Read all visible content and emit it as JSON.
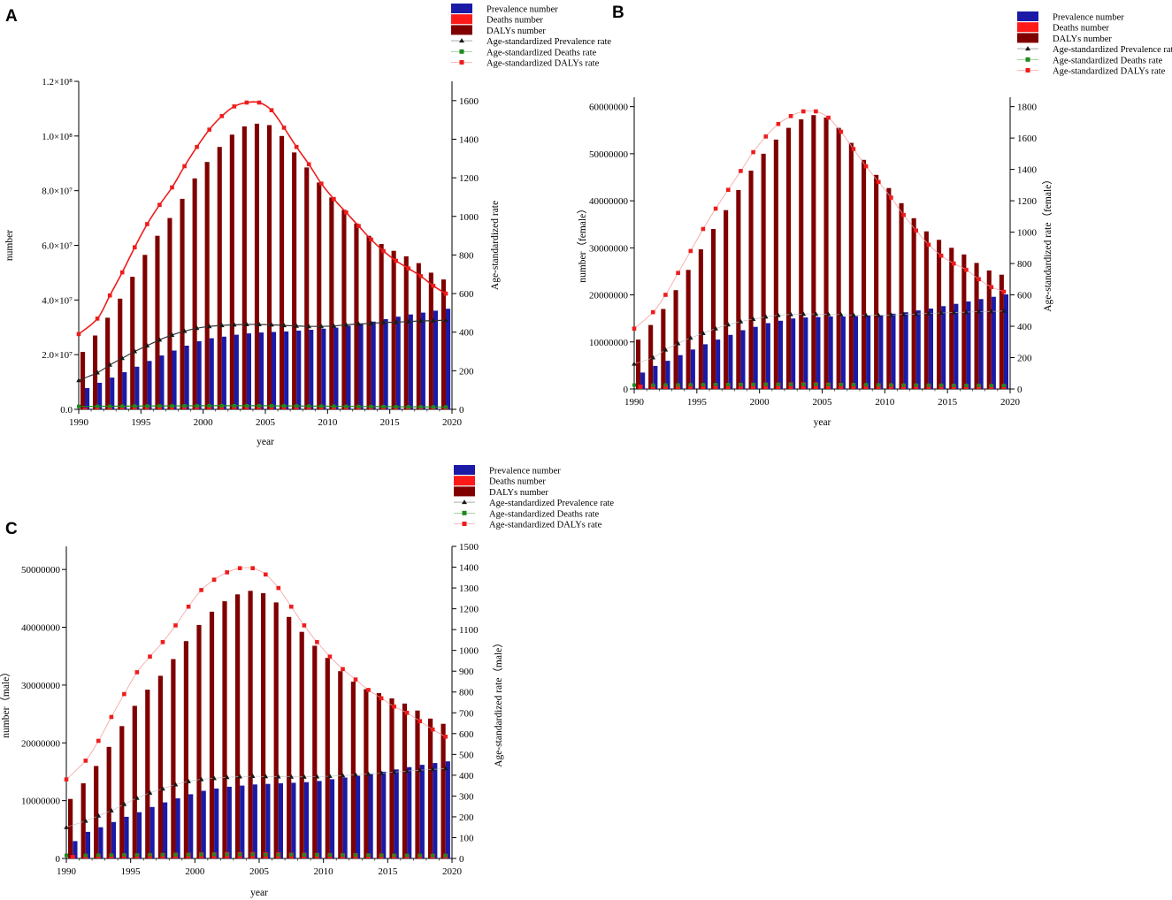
{
  "figure": {
    "legend_labels": [
      "Prevalence number",
      "Deaths number",
      "DALYs number",
      "Age-standardized Prevalence rate",
      "Age-standardized Deaths rate",
      "Age-standardized DALYs rate"
    ],
    "colors": {
      "prevalence_bar": "#1a1aa6",
      "deaths_bar": "#ff1a1a",
      "dalys_bar": "#800000",
      "prevalence_rate": "#1a1a1a",
      "deaths_rate": "#1e8a1e",
      "dalys_rate": "#ee1c1c",
      "prevalence_rate_line_a": "#333333",
      "dalys_rate_line_a": "#ee1c1c",
      "rate_line_light": "#f4a0a0"
    }
  },
  "chart_data": [
    {
      "panel": "A",
      "type": "bar",
      "style": "smooth",
      "x": [
        1990,
        1991,
        1992,
        1993,
        1994,
        1995,
        1996,
        1997,
        1998,
        1999,
        2000,
        2001,
        2002,
        2003,
        2004,
        2005,
        2006,
        2007,
        2008,
        2009,
        2010,
        2011,
        2012,
        2013,
        2014,
        2015,
        2016,
        2017,
        2018,
        2019
      ],
      "xlim": [
        1990,
        2020
      ],
      "xticks": [
        1990,
        1995,
        2000,
        2005,
        2010,
        2015,
        2020
      ],
      "xlabel": "year",
      "ylabel": "number",
      "ylim": [
        0,
        120000000
      ],
      "yticks": [
        0,
        20000000,
        40000000,
        60000000,
        80000000,
        100000000,
        120000000
      ],
      "yticklabels": [
        "0.0",
        "2.0×10⁷",
        "4.0×10⁷",
        "6.0×10⁷",
        "8.0×10⁷",
        "1.0×10⁸",
        "1.2×10⁸"
      ],
      "y2label": "Age-standardized rate",
      "y2lim": [
        0,
        1700
      ],
      "y2ticks": [
        0,
        200,
        400,
        600,
        800,
        1000,
        1200,
        1400,
        1600
      ],
      "series": [
        {
          "name": "Prevalence number",
          "kind": "bar",
          "values": [
            7800000,
            9700000,
            11600000,
            13600000,
            15600000,
            17700000,
            19700000,
            21500000,
            23300000,
            24900000,
            26000000,
            26600000,
            27300000,
            27800000,
            28100000,
            28300000,
            28500000,
            28800000,
            29100000,
            29500000,
            29900000,
            30600000,
            31300000,
            32100000,
            33000000,
            33900000,
            34700000,
            35400000,
            36100000,
            36800000
          ]
        },
        {
          "name": "Deaths number",
          "kind": "bar",
          "values": [
            600000,
            700000,
            800000,
            900000,
            1000000,
            1100000,
            1200000,
            1300000,
            1350000,
            1400000,
            1450000,
            1500000,
            1500000,
            1500000,
            1500000,
            1450000,
            1400000,
            1350000,
            1300000,
            1250000,
            1200000,
            1150000,
            1100000,
            1050000,
            1000000,
            1000000,
            1000000,
            1000000,
            1000000,
            1000000
          ]
        },
        {
          "name": "DALYs number",
          "kind": "bar",
          "values": [
            21000000,
            27000000,
            33500000,
            40500000,
            48500000,
            56500000,
            63500000,
            70000000,
            77000000,
            84500000,
            90500000,
            96000000,
            100500000,
            103500000,
            104500000,
            104000000,
            100000000,
            94000000,
            88500000,
            83000000,
            77500000,
            73000000,
            68000000,
            63500000,
            60500000,
            58000000,
            56000000,
            53500000,
            50000000,
            47500000
          ]
        },
        {
          "name": "Age-standardized Prevalence rate",
          "kind": "line",
          "values": [
            150,
            190,
            230,
            265,
            300,
            330,
            360,
            385,
            405,
            420,
            430,
            435,
            438,
            440,
            440,
            438,
            435,
            432,
            430,
            430,
            432,
            438,
            442,
            446,
            450,
            452,
            455,
            458,
            460,
            462
          ]
        },
        {
          "name": "Age-standardized Deaths rate",
          "kind": "line",
          "values": [
            15,
            15.5,
            16,
            16.5,
            17,
            17.5,
            18,
            18,
            18.5,
            18.5,
            19,
            19,
            19,
            19,
            19,
            18.5,
            18,
            17.5,
            17,
            16.5,
            16,
            15.5,
            15,
            14.5,
            14,
            13.5,
            13,
            13,
            12.5,
            12.5
          ]
        },
        {
          "name": "Age-standardized DALYs rate",
          "kind": "line",
          "values": [
            390,
            470,
            590,
            710,
            840,
            960,
            1060,
            1150,
            1260,
            1360,
            1450,
            1520,
            1570,
            1590,
            1590,
            1550,
            1460,
            1360,
            1270,
            1170,
            1090,
            1020,
            950,
            880,
            820,
            770,
            730,
            690,
            640,
            600
          ]
        }
      ]
    },
    {
      "panel": "B",
      "type": "bar",
      "style": "markers",
      "x": [
        1990,
        1991,
        1992,
        1993,
        1994,
        1995,
        1996,
        1997,
        1998,
        1999,
        2000,
        2001,
        2002,
        2003,
        2004,
        2005,
        2006,
        2007,
        2008,
        2009,
        2010,
        2011,
        2012,
        2013,
        2014,
        2015,
        2016,
        2017,
        2018,
        2019
      ],
      "xlim": [
        1990,
        2020
      ],
      "xticks": [
        1990,
        1995,
        2000,
        2005,
        2010,
        2015,
        2020
      ],
      "xlabel": "year",
      "ylabel": "number（female）",
      "ylim": [
        0,
        62000000
      ],
      "yticks": [
        0,
        10000000,
        20000000,
        30000000,
        40000000,
        50000000,
        60000000
      ],
      "yticklabels": [
        "0",
        "10000000",
        "20000000",
        "30000000",
        "40000000",
        "50000000",
        "60000000"
      ],
      "y2label": "Age-standardized rate（female）",
      "y2lim": [
        0,
        1860
      ],
      "y2ticks": [
        0,
        200,
        400,
        600,
        800,
        1000,
        1200,
        1400,
        1600,
        1800
      ],
      "series": [
        {
          "name": "Prevalence number",
          "kind": "bar",
          "values": [
            3500000,
            4900000,
            6000000,
            7200000,
            8400000,
            9500000,
            10500000,
            11500000,
            12500000,
            13200000,
            14000000,
            14500000,
            15000000,
            15200000,
            15300000,
            15400000,
            15400000,
            15500000,
            15600000,
            15700000,
            16000000,
            16300000,
            16700000,
            17100000,
            17600000,
            18100000,
            18600000,
            19100000,
            19600000,
            20100000
          ]
        },
        {
          "name": "Deaths number",
          "kind": "bar",
          "values": [
            900000,
            950000,
            1000000,
            1050000,
            1100000,
            1150000,
            1200000,
            1250000,
            1300000,
            1300000,
            1350000,
            1350000,
            1400000,
            1400000,
            1400000,
            1350000,
            1300000,
            1250000,
            1200000,
            1200000,
            1150000,
            1100000,
            1100000,
            1050000,
            1000000,
            1000000,
            1000000,
            1000000,
            1000000,
            1000000
          ]
        },
        {
          "name": "DALYs number",
          "kind": "bar",
          "values": [
            10500000,
            13600000,
            17000000,
            21000000,
            25300000,
            29700000,
            34000000,
            38000000,
            42300000,
            46400000,
            50000000,
            53000000,
            55500000,
            57300000,
            58200000,
            57700000,
            55500000,
            52300000,
            48700000,
            45500000,
            42700000,
            39500000,
            36300000,
            33500000,
            31700000,
            30000000,
            28600000,
            26800000,
            25200000,
            24300000
          ]
        },
        {
          "name": "Age-standardized Prevalence rate",
          "kind": "markers",
          "values": [
            160,
            200,
            250,
            290,
            325,
            355,
            385,
            410,
            430,
            445,
            460,
            470,
            475,
            478,
            478,
            476,
            474,
            472,
            470,
            470,
            472,
            475,
            478,
            482,
            485,
            488,
            490,
            493,
            495,
            497
          ]
        },
        {
          "name": "Age-standardized Deaths rate",
          "kind": "markers",
          "values": [
            25,
            25,
            26,
            26,
            27,
            27,
            28,
            28,
            28,
            29,
            29,
            29,
            29,
            29,
            29,
            28,
            28,
            27,
            27,
            26,
            26,
            25,
            25,
            24,
            24,
            23,
            23,
            23,
            22,
            22
          ]
        },
        {
          "name": "Age-standardized DALYs rate",
          "kind": "markers",
          "values": [
            385,
            490,
            600,
            740,
            880,
            1020,
            1150,
            1270,
            1390,
            1510,
            1610,
            1690,
            1740,
            1770,
            1770,
            1730,
            1640,
            1530,
            1420,
            1320,
            1220,
            1110,
            1010,
            920,
            850,
            800,
            760,
            700,
            650,
            620
          ]
        }
      ]
    },
    {
      "panel": "C",
      "type": "bar",
      "style": "markers",
      "x": [
        1990,
        1991,
        1992,
        1993,
        1994,
        1995,
        1996,
        1997,
        1998,
        1999,
        2000,
        2001,
        2002,
        2003,
        2004,
        2005,
        2006,
        2007,
        2008,
        2009,
        2010,
        2011,
        2012,
        2013,
        2014,
        2015,
        2016,
        2017,
        2018,
        2019
      ],
      "xlim": [
        1990,
        2020
      ],
      "xticks": [
        1990,
        1995,
        2000,
        2005,
        2010,
        2015,
        2020
      ],
      "xlabel": "year",
      "ylabel": "number（male）",
      "ylim": [
        0,
        54000000
      ],
      "yticks": [
        0,
        10000000,
        20000000,
        30000000,
        40000000,
        50000000
      ],
      "yticklabels": [
        "0",
        "10000000",
        "20000000",
        "30000000",
        "40000000",
        "50000000"
      ],
      "y2label": "Age-standardized rate（male）",
      "y2lim": [
        0,
        1500
      ],
      "y2ticks": [
        0,
        100,
        200,
        300,
        400,
        500,
        600,
        700,
        800,
        900,
        1000,
        1100,
        1200,
        1300,
        1400,
        1500
      ],
      "series": [
        {
          "name": "Prevalence number",
          "kind": "bar",
          "values": [
            3000000,
            4600000,
            5400000,
            6300000,
            7200000,
            8000000,
            8900000,
            9700000,
            10400000,
            11100000,
            11700000,
            12100000,
            12400000,
            12600000,
            12800000,
            12900000,
            13000000,
            13100000,
            13200000,
            13400000,
            13700000,
            14000000,
            14300000,
            14600000,
            15000000,
            15400000,
            15800000,
            16200000,
            16500000,
            16800000
          ]
        },
        {
          "name": "Deaths number",
          "kind": "bar",
          "values": [
            600000,
            650000,
            700000,
            750000,
            800000,
            850000,
            900000,
            950000,
            1000000,
            1000000,
            1050000,
            1050000,
            1100000,
            1100000,
            1100000,
            1050000,
            1050000,
            1000000,
            1000000,
            950000,
            950000,
            900000,
            900000,
            850000,
            850000,
            800000,
            800000,
            800000,
            800000,
            800000
          ]
        },
        {
          "name": "DALYs number",
          "kind": "bar",
          "values": [
            10300000,
            13000000,
            16000000,
            19300000,
            22900000,
            26400000,
            29200000,
            31600000,
            34500000,
            37600000,
            40400000,
            42700000,
            44500000,
            45700000,
            46300000,
            45900000,
            44300000,
            41800000,
            39200000,
            36800000,
            34700000,
            32400000,
            30600000,
            29300000,
            28600000,
            27700000,
            26800000,
            25600000,
            24200000,
            23300000
          ]
        },
        {
          "name": "Age-standardized Prevalence rate",
          "kind": "markers",
          "values": [
            150,
            180,
            205,
            230,
            260,
            290,
            315,
            335,
            355,
            370,
            380,
            385,
            390,
            393,
            395,
            394,
            393,
            392,
            392,
            393,
            395,
            398,
            402,
            406,
            410,
            415,
            420,
            424,
            428,
            432
          ]
        },
        {
          "name": "Age-standardized Deaths rate",
          "kind": "markers",
          "values": [
            15,
            15,
            16,
            16,
            17,
            17,
            18,
            18,
            18,
            18,
            19,
            19,
            19,
            19,
            19,
            18,
            18,
            18,
            17,
            17,
            17,
            16,
            16,
            16,
            15,
            15,
            15,
            15,
            14,
            14
          ]
        },
        {
          "name": "Age-standardized DALYs rate",
          "kind": "markers",
          "values": [
            380,
            470,
            565,
            680,
            790,
            895,
            970,
            1040,
            1120,
            1210,
            1290,
            1340,
            1375,
            1395,
            1395,
            1365,
            1300,
            1210,
            1120,
            1040,
            970,
            910,
            860,
            810,
            770,
            730,
            700,
            660,
            620,
            585
          ]
        }
      ]
    }
  ]
}
